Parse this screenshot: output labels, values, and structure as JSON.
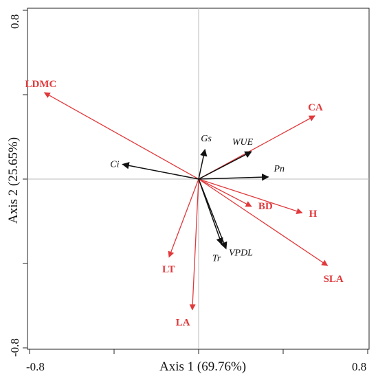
{
  "chart_data": {
    "type": "biplot",
    "xlabel": "Axis 1 (69.76%)",
    "ylabel": "Axis 2 (25.65%)",
    "xlim": [
      -0.8,
      0.8
    ],
    "ylim": [
      -0.8,
      0.8
    ],
    "x_tick_labels": [
      "-0.8",
      "0.8"
    ],
    "y_tick_labels": [
      "0.8",
      "-0.8"
    ],
    "colors": {
      "red": "#e0393b",
      "black": "#111111",
      "zero_line": "#bbbbbb"
    },
    "series": [
      {
        "group": "red",
        "vectors": [
          {
            "label": "LDMC",
            "x": -0.73,
            "y": 0.41
          },
          {
            "label": "CA",
            "x": 0.55,
            "y": 0.3
          },
          {
            "label": "BD",
            "x": 0.25,
            "y": -0.13
          },
          {
            "label": "H",
            "x": 0.49,
            "y": -0.16
          },
          {
            "label": "SLA",
            "x": 0.61,
            "y": -0.41
          },
          {
            "label": "LT",
            "x": -0.14,
            "y": -0.37
          },
          {
            "label": "LA",
            "x": -0.03,
            "y": -0.62
          }
        ]
      },
      {
        "group": "black",
        "vectors": [
          {
            "label": "Gs",
            "x": 0.03,
            "y": 0.14
          },
          {
            "label": "WUE",
            "x": 0.25,
            "y": 0.13
          },
          {
            "label": "Ci",
            "x": -0.36,
            "y": 0.07
          },
          {
            "label": "Pn",
            "x": 0.33,
            "y": 0.01
          },
          {
            "label": "VPDL",
            "x": 0.13,
            "y": -0.33
          },
          {
            "label": "Tr",
            "x": 0.11,
            "y": -0.31
          }
        ]
      }
    ]
  }
}
